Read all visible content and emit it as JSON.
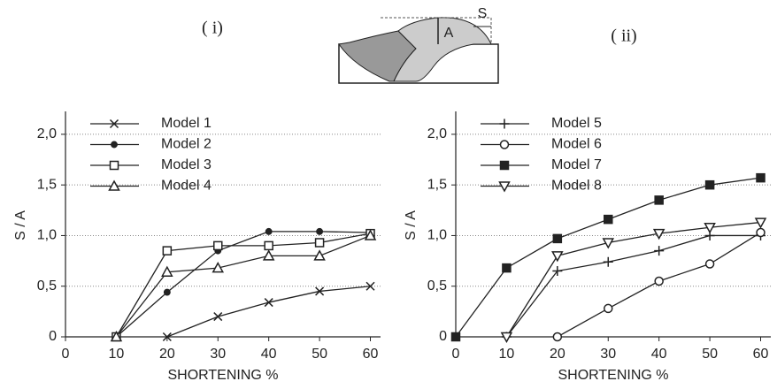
{
  "diagram": {
    "labels": [
      "A",
      "S"
    ]
  },
  "chart_data": [
    {
      "type": "line",
      "title": "( i)",
      "x_label": "SHORTENING  %",
      "y_label": "S / A",
      "xlim": [
        0,
        62
      ],
      "ylim": [
        0,
        2.2
      ],
      "grid": true,
      "legend": "upper left",
      "xticks": [
        0,
        10,
        20,
        30,
        40,
        50,
        60
      ],
      "yticks": [
        0,
        {
          "value": 0.5,
          "label": "0,5"
        },
        {
          "value": 1,
          "label": "1,0"
        },
        {
          "value": 1.5,
          "label": "1,5"
        },
        {
          "value": 2,
          "label": "2,0"
        }
      ],
      "series": [
        {
          "name": "Model 1",
          "marker": "x",
          "color": "#222222",
          "x": [
            20,
            30,
            40,
            50,
            60
          ],
          "values": [
            0,
            0.2,
            0.34,
            0.45,
            0.5
          ]
        },
        {
          "name": "Model 2",
          "marker": "dot",
          "color": "#222222",
          "x": [
            10,
            20,
            30,
            40,
            50,
            60
          ],
          "values": [
            0,
            0.44,
            0.85,
            1.04,
            1.04,
            1.03
          ]
        },
        {
          "name": "Model 3",
          "marker": "square",
          "color": "#222222",
          "x": [
            10,
            20,
            30,
            40,
            50,
            60
          ],
          "values": [
            0,
            0.85,
            0.9,
            0.9,
            0.93,
            1.02
          ]
        },
        {
          "name": "Model 4",
          "marker": "triangle",
          "color": "#222222",
          "x": [
            10,
            20,
            30,
            40,
            50,
            60
          ],
          "values": [
            0,
            0.64,
            0.68,
            0.8,
            0.8,
            1.0
          ]
        }
      ]
    },
    {
      "type": "line",
      "title": "( ii)",
      "x_label": "SHORTENING  %",
      "y_label": "S / A",
      "xlim": [
        0,
        62
      ],
      "ylim": [
        0,
        2.2
      ],
      "grid": true,
      "legend": "upper left",
      "xticks": [
        0,
        10,
        20,
        30,
        40,
        50,
        60
      ],
      "yticks": [
        0,
        {
          "value": 0.5,
          "label": "0,5"
        },
        {
          "value": 1,
          "label": "1,0"
        },
        {
          "value": 1.5,
          "label": "1,5"
        },
        {
          "value": 2,
          "label": "2,0"
        }
      ],
      "series": [
        {
          "name": "Model 5",
          "marker": "plus",
          "color": "#222222",
          "x": [
            10,
            20,
            30,
            40,
            50,
            60
          ],
          "values": [
            0,
            0.65,
            0.74,
            0.85,
            1.0,
            1.0
          ]
        },
        {
          "name": "Model 6",
          "marker": "circle",
          "color": "#222222",
          "x": [
            20,
            30,
            40,
            50,
            60
          ],
          "values": [
            0,
            0.28,
            0.55,
            0.72,
            1.03
          ]
        },
        {
          "name": "Model 7",
          "marker": "filled-square",
          "color": "#222222",
          "x": [
            0,
            10,
            20,
            30,
            40,
            50,
            60
          ],
          "values": [
            0,
            0.68,
            0.97,
            1.16,
            1.35,
            1.5,
            1.57
          ]
        },
        {
          "name": "Model 8",
          "marker": "triangle-down",
          "color": "#222222",
          "x": [
            10,
            20,
            30,
            40,
            50,
            60
          ],
          "values": [
            0,
            0.8,
            0.93,
            1.02,
            1.08,
            1.13
          ]
        }
      ]
    }
  ]
}
